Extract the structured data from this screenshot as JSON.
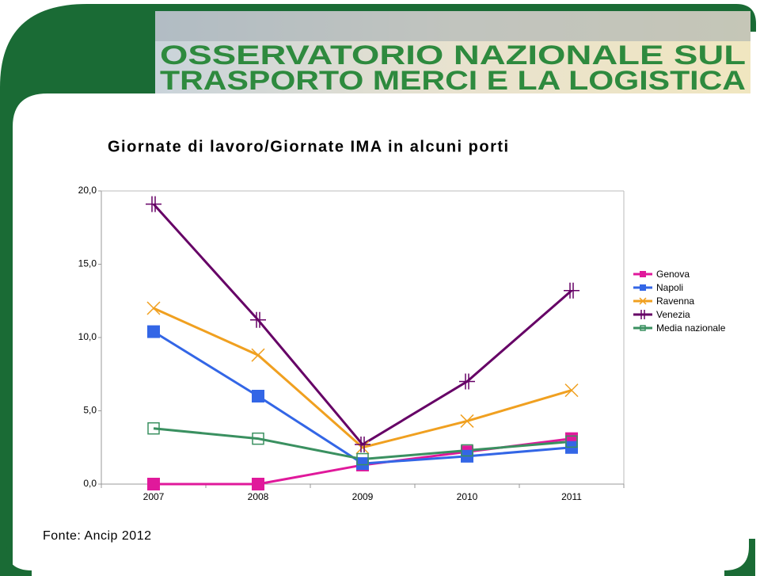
{
  "header": {
    "line1": "OSSERVATORIO NAZIONALE SUL",
    "line2": "TRASPORTO MERCI E LA LOGISTICA"
  },
  "chart_data": {
    "type": "line",
    "title": "Giornate di lavoro/Giornate IMA in alcuni porti",
    "categories": [
      "2007",
      "2008",
      "2009",
      "2010",
      "2011"
    ],
    "series": [
      {
        "name": "Genova",
        "color": "#e0199b",
        "marker": "square",
        "values": [
          0,
          0,
          1.3,
          2.2,
          3.1
        ]
      },
      {
        "name": "Napoli",
        "color": "#3366e6",
        "marker": "square",
        "values": [
          10.4,
          6.0,
          1.4,
          1.9,
          2.5
        ]
      },
      {
        "name": "Ravenna",
        "color": "#f0a020",
        "marker": "x",
        "values": [
          12.0,
          8.8,
          2.5,
          4.3,
          6.4
        ]
      },
      {
        "name": "Venezia",
        "color": "#660066",
        "marker": "plus",
        "values": [
          19.1,
          11.2,
          2.7,
          7.0,
          13.2
        ]
      },
      {
        "name": "Media nazionale",
        "color": "#3a9060",
        "marker": "hollow-square",
        "values": [
          3.8,
          3.1,
          1.7,
          2.3,
          2.9
        ]
      }
    ],
    "ylim": [
      0,
      20
    ],
    "yticks": [
      {
        "value": 0,
        "label": "0,0"
      },
      {
        "value": 5,
        "label": "5,0"
      },
      {
        "value": 10,
        "label": "10,0"
      },
      {
        "value": 15,
        "label": "15,0"
      },
      {
        "value": 20,
        "label": "20,0"
      }
    ],
    "grid": false,
    "legend": "right",
    "source": "Fonte: Ancip 2012"
  }
}
